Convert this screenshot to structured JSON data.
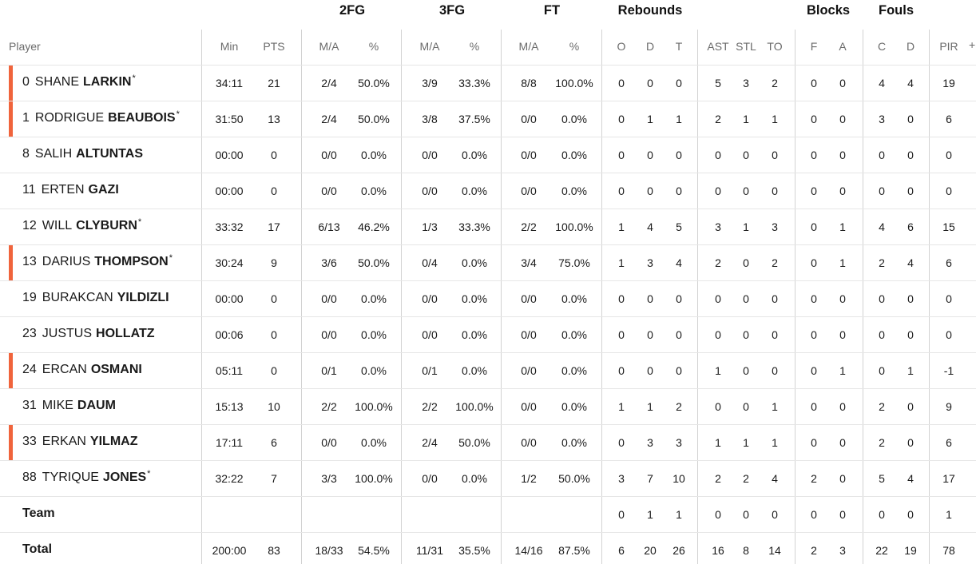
{
  "groups": {
    "fg2": "2FG",
    "fg3": "3FG",
    "ft": "FT",
    "rebounds": "Rebounds",
    "blocks": "Blocks",
    "fouls": "Fouls"
  },
  "headers": {
    "player": "Player",
    "min": "Min",
    "pts": "PTS",
    "fg2_ma": "M/A",
    "fg2_pct": "%",
    "fg3_ma": "M/A",
    "fg3_pct": "%",
    "ft_ma": "M/A",
    "ft_pct": "%",
    "reb_o": "O",
    "reb_d": "D",
    "reb_t": "T",
    "ast": "AST",
    "stl": "STL",
    "to": "TO",
    "blk_f": "F",
    "blk_a": "A",
    "foul_c": "C",
    "foul_d": "D",
    "pir": "PIR",
    "expand": "+"
  },
  "starter_color": "#f0643c",
  "players": [
    {
      "num": "0",
      "first": "SHANE",
      "last": "LARKIN",
      "star": "*",
      "starter": true,
      "min": "34:11",
      "pts": "21",
      "fg2_ma": "2/4",
      "fg2_pct": "50.0%",
      "fg3_ma": "3/9",
      "fg3_pct": "33.3%",
      "ft_ma": "8/8",
      "ft_pct": "100.0%",
      "reb_o": "0",
      "reb_d": "0",
      "reb_t": "0",
      "ast": "5",
      "stl": "3",
      "to": "2",
      "blk_f": "0",
      "blk_a": "0",
      "foul_c": "4",
      "foul_d": "4",
      "pir": "19"
    },
    {
      "num": "1",
      "first": "RODRIGUE",
      "last": "BEAUBOIS",
      "star": "*",
      "starter": true,
      "min": "31:50",
      "pts": "13",
      "fg2_ma": "2/4",
      "fg2_pct": "50.0%",
      "fg3_ma": "3/8",
      "fg3_pct": "37.5%",
      "ft_ma": "0/0",
      "ft_pct": "0.0%",
      "reb_o": "0",
      "reb_d": "1",
      "reb_t": "1",
      "ast": "2",
      "stl": "1",
      "to": "1",
      "blk_f": "0",
      "blk_a": "0",
      "foul_c": "3",
      "foul_d": "0",
      "pir": "6"
    },
    {
      "num": "8",
      "first": "SALIH",
      "last": "ALTUNTAS",
      "star": "",
      "starter": false,
      "min": "00:00",
      "pts": "0",
      "fg2_ma": "0/0",
      "fg2_pct": "0.0%",
      "fg3_ma": "0/0",
      "fg3_pct": "0.0%",
      "ft_ma": "0/0",
      "ft_pct": "0.0%",
      "reb_o": "0",
      "reb_d": "0",
      "reb_t": "0",
      "ast": "0",
      "stl": "0",
      "to": "0",
      "blk_f": "0",
      "blk_a": "0",
      "foul_c": "0",
      "foul_d": "0",
      "pir": "0"
    },
    {
      "num": "11",
      "first": "ERTEN",
      "last": "GAZI",
      "star": "",
      "starter": false,
      "min": "00:00",
      "pts": "0",
      "fg2_ma": "0/0",
      "fg2_pct": "0.0%",
      "fg3_ma": "0/0",
      "fg3_pct": "0.0%",
      "ft_ma": "0/0",
      "ft_pct": "0.0%",
      "reb_o": "0",
      "reb_d": "0",
      "reb_t": "0",
      "ast": "0",
      "stl": "0",
      "to": "0",
      "blk_f": "0",
      "blk_a": "0",
      "foul_c": "0",
      "foul_d": "0",
      "pir": "0"
    },
    {
      "num": "12",
      "first": "WILL",
      "last": "CLYBURN",
      "star": "*",
      "starter": false,
      "min": "33:32",
      "pts": "17",
      "fg2_ma": "6/13",
      "fg2_pct": "46.2%",
      "fg3_ma": "1/3",
      "fg3_pct": "33.3%",
      "ft_ma": "2/2",
      "ft_pct": "100.0%",
      "reb_o": "1",
      "reb_d": "4",
      "reb_t": "5",
      "ast": "3",
      "stl": "1",
      "to": "3",
      "blk_f": "0",
      "blk_a": "1",
      "foul_c": "4",
      "foul_d": "6",
      "pir": "15"
    },
    {
      "num": "13",
      "first": "DARIUS",
      "last": "THOMPSON",
      "star": "*",
      "starter": true,
      "min": "30:24",
      "pts": "9",
      "fg2_ma": "3/6",
      "fg2_pct": "50.0%",
      "fg3_ma": "0/4",
      "fg3_pct": "0.0%",
      "ft_ma": "3/4",
      "ft_pct": "75.0%",
      "reb_o": "1",
      "reb_d": "3",
      "reb_t": "4",
      "ast": "2",
      "stl": "0",
      "to": "2",
      "blk_f": "0",
      "blk_a": "1",
      "foul_c": "2",
      "foul_d": "4",
      "pir": "6"
    },
    {
      "num": "19",
      "first": "BURAKCAN",
      "last": "YILDIZLI",
      "star": "",
      "starter": false,
      "min": "00:00",
      "pts": "0",
      "fg2_ma": "0/0",
      "fg2_pct": "0.0%",
      "fg3_ma": "0/0",
      "fg3_pct": "0.0%",
      "ft_ma": "0/0",
      "ft_pct": "0.0%",
      "reb_o": "0",
      "reb_d": "0",
      "reb_t": "0",
      "ast": "0",
      "stl": "0",
      "to": "0",
      "blk_f": "0",
      "blk_a": "0",
      "foul_c": "0",
      "foul_d": "0",
      "pir": "0"
    },
    {
      "num": "23",
      "first": "JUSTUS",
      "last": "HOLLATZ",
      "star": "",
      "starter": false,
      "min": "00:06",
      "pts": "0",
      "fg2_ma": "0/0",
      "fg2_pct": "0.0%",
      "fg3_ma": "0/0",
      "fg3_pct": "0.0%",
      "ft_ma": "0/0",
      "ft_pct": "0.0%",
      "reb_o": "0",
      "reb_d": "0",
      "reb_t": "0",
      "ast": "0",
      "stl": "0",
      "to": "0",
      "blk_f": "0",
      "blk_a": "0",
      "foul_c": "0",
      "foul_d": "0",
      "pir": "0"
    },
    {
      "num": "24",
      "first": "ERCAN",
      "last": "OSMANI",
      "star": "",
      "starter": true,
      "min": "05:11",
      "pts": "0",
      "fg2_ma": "0/1",
      "fg2_pct": "0.0%",
      "fg3_ma": "0/1",
      "fg3_pct": "0.0%",
      "ft_ma": "0/0",
      "ft_pct": "0.0%",
      "reb_o": "0",
      "reb_d": "0",
      "reb_t": "0",
      "ast": "1",
      "stl": "0",
      "to": "0",
      "blk_f": "0",
      "blk_a": "1",
      "foul_c": "0",
      "foul_d": "1",
      "pir": "-1"
    },
    {
      "num": "31",
      "first": "MIKE",
      "last": "DAUM",
      "star": "",
      "starter": false,
      "min": "15:13",
      "pts": "10",
      "fg2_ma": "2/2",
      "fg2_pct": "100.0%",
      "fg3_ma": "2/2",
      "fg3_pct": "100.0%",
      "ft_ma": "0/0",
      "ft_pct": "0.0%",
      "reb_o": "1",
      "reb_d": "1",
      "reb_t": "2",
      "ast": "0",
      "stl": "0",
      "to": "1",
      "blk_f": "0",
      "blk_a": "0",
      "foul_c": "2",
      "foul_d": "0",
      "pir": "9"
    },
    {
      "num": "33",
      "first": "ERKAN",
      "last": "YILMAZ",
      "star": "",
      "starter": true,
      "min": "17:11",
      "pts": "6",
      "fg2_ma": "0/0",
      "fg2_pct": "0.0%",
      "fg3_ma": "2/4",
      "fg3_pct": "50.0%",
      "ft_ma": "0/0",
      "ft_pct": "0.0%",
      "reb_o": "0",
      "reb_d": "3",
      "reb_t": "3",
      "ast": "1",
      "stl": "1",
      "to": "1",
      "blk_f": "0",
      "blk_a": "0",
      "foul_c": "2",
      "foul_d": "0",
      "pir": "6"
    },
    {
      "num": "88",
      "first": "TYRIQUE",
      "last": "JONES",
      "star": "*",
      "starter": false,
      "min": "32:22",
      "pts": "7",
      "fg2_ma": "3/3",
      "fg2_pct": "100.0%",
      "fg3_ma": "0/0",
      "fg3_pct": "0.0%",
      "ft_ma": "1/2",
      "ft_pct": "50.0%",
      "reb_o": "3",
      "reb_d": "7",
      "reb_t": "10",
      "ast": "2",
      "stl": "2",
      "to": "4",
      "blk_f": "2",
      "blk_a": "0",
      "foul_c": "5",
      "foul_d": "4",
      "pir": "17"
    }
  ],
  "team": {
    "label": "Team",
    "min": "",
    "pts": "",
    "fg2_ma": "",
    "fg2_pct": "",
    "fg3_ma": "",
    "fg3_pct": "",
    "ft_ma": "",
    "ft_pct": "",
    "reb_o": "0",
    "reb_d": "1",
    "reb_t": "1",
    "ast": "0",
    "stl": "0",
    "to": "0",
    "blk_f": "0",
    "blk_a": "0",
    "foul_c": "0",
    "foul_d": "0",
    "pir": "1"
  },
  "total": {
    "label": "Total",
    "min": "200:00",
    "pts": "83",
    "fg2_ma": "18/33",
    "fg2_pct": "54.5%",
    "fg3_ma": "11/31",
    "fg3_pct": "35.5%",
    "ft_ma": "14/16",
    "ft_pct": "87.5%",
    "reb_o": "6",
    "reb_d": "20",
    "reb_t": "26",
    "ast": "16",
    "stl": "8",
    "to": "14",
    "blk_f": "2",
    "blk_a": "3",
    "foul_c": "22",
    "foul_d": "19",
    "pir": "78"
  }
}
